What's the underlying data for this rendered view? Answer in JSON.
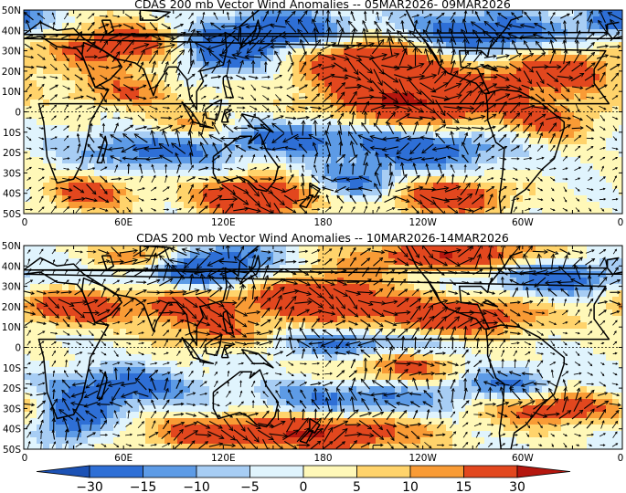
{
  "panels": [
    {
      "title": "CDAS 200 mb Vector Wind Anomalies -- 05MAR2026- 09MAR2026",
      "lat_labels": [
        "50N",
        "40N",
        "30N",
        "20N",
        "10N",
        "0",
        "10S",
        "20S",
        "30S",
        "40S",
        "50S"
      ],
      "lon_labels": [
        "0",
        "60E",
        "120E",
        "180",
        "120W",
        "60W",
        "0"
      ],
      "field": [
        {
          "lon": 60,
          "lat": 32,
          "a": 22,
          "rx": 32,
          "ry": 8
        },
        {
          "lon": 118,
          "lat": 30,
          "a": -25,
          "rx": 22,
          "ry": 8
        },
        {
          "lon": 160,
          "lat": 40,
          "a": -22,
          "rx": 30,
          "ry": 7
        },
        {
          "lon": 210,
          "lat": 25,
          "a": 28,
          "rx": 32,
          "ry": 9
        },
        {
          "lon": 240,
          "lat": 5,
          "a": 30,
          "rx": 40,
          "ry": 9
        },
        {
          "lon": 275,
          "lat": 38,
          "a": -24,
          "rx": 35,
          "ry": 8
        },
        {
          "lon": 320,
          "lat": 20,
          "a": 22,
          "rx": 28,
          "ry": 8
        },
        {
          "lon": 60,
          "lat": 10,
          "a": 14,
          "rx": 25,
          "ry": 6
        },
        {
          "lon": 100,
          "lat": -8,
          "a": 14,
          "rx": 25,
          "ry": 6
        },
        {
          "lon": 80,
          "lat": -18,
          "a": -20,
          "rx": 35,
          "ry": 7
        },
        {
          "lon": 160,
          "lat": -12,
          "a": -18,
          "rx": 30,
          "ry": 6
        },
        {
          "lon": 240,
          "lat": -18,
          "a": -22,
          "rx": 35,
          "ry": 7
        },
        {
          "lon": 140,
          "lat": -42,
          "a": 30,
          "rx": 25,
          "ry": 7
        },
        {
          "lon": 255,
          "lat": -42,
          "a": 26,
          "rx": 25,
          "ry": 6
        },
        {
          "lon": 40,
          "lat": -40,
          "a": 20,
          "rx": 18,
          "ry": 6
        },
        {
          "lon": 200,
          "lat": -35,
          "a": -16,
          "rx": 22,
          "ry": 6
        },
        {
          "lon": 320,
          "lat": -5,
          "a": 14,
          "rx": 20,
          "ry": 7
        },
        {
          "lon": 355,
          "lat": 45,
          "a": -20,
          "rx": 15,
          "ry": 6
        }
      ]
    },
    {
      "title": "CDAS 200 mb Vector Wind Anomalies -- 10MAR2026-14MAR2026",
      "lat_labels": [
        "50N",
        "40N",
        "30N",
        "20N",
        "10N",
        "0",
        "10S",
        "20S",
        "30S",
        "40S",
        "50S"
      ],
      "lon_labels": [
        "0",
        "60E",
        "120E",
        "180",
        "120W",
        "60W",
        "0"
      ],
      "field": [
        {
          "lon": 75,
          "lat": 45,
          "a": 24,
          "rx": 20,
          "ry": 5
        },
        {
          "lon": 110,
          "lat": 40,
          "a": -28,
          "rx": 30,
          "ry": 8
        },
        {
          "lon": 175,
          "lat": 25,
          "a": 26,
          "rx": 30,
          "ry": 9
        },
        {
          "lon": 260,
          "lat": 45,
          "a": 28,
          "rx": 40,
          "ry": 5
        },
        {
          "lon": 320,
          "lat": 35,
          "a": -20,
          "rx": 30,
          "ry": 7
        },
        {
          "lon": 30,
          "lat": 20,
          "a": 24,
          "rx": 25,
          "ry": 6
        },
        {
          "lon": 100,
          "lat": 20,
          "a": 20,
          "rx": 25,
          "ry": 7
        },
        {
          "lon": 260,
          "lat": 15,
          "a": 26,
          "rx": 35,
          "ry": 7
        },
        {
          "lon": 120,
          "lat": 5,
          "a": 14,
          "rx": 25,
          "ry": 5
        },
        {
          "lon": 200,
          "lat": 2,
          "a": -18,
          "rx": 40,
          "ry": 5
        },
        {
          "lon": 230,
          "lat": -10,
          "a": 18,
          "rx": 25,
          "ry": 6
        },
        {
          "lon": 60,
          "lat": -20,
          "a": -20,
          "rx": 30,
          "ry": 7
        },
        {
          "lon": 30,
          "lat": -35,
          "a": -22,
          "rx": 15,
          "ry": 8
        },
        {
          "lon": 200,
          "lat": -25,
          "a": -18,
          "rx": 40,
          "ry": 6
        },
        {
          "lon": 320,
          "lat": -30,
          "a": 22,
          "rx": 30,
          "ry": 6
        },
        {
          "lon": 180,
          "lat": -42,
          "a": 28,
          "rx": 40,
          "ry": 6
        },
        {
          "lon": 110,
          "lat": -42,
          "a": 16,
          "rx": 30,
          "ry": 6
        },
        {
          "lon": 290,
          "lat": -18,
          "a": -16,
          "rx": 25,
          "ry": 6
        }
      ]
    }
  ],
  "colorbar": {
    "ticks": [
      "−30",
      "−15",
      "−10",
      "−5",
      "0",
      "5",
      "10",
      "15",
      "30"
    ],
    "colors": [
      "#2e6fd6",
      "#5d9be6",
      "#a7cdf4",
      "#e0f4fd",
      "#fff8b8",
      "#ffd36b",
      "#f99b35",
      "#e2471e"
    ],
    "end_colors": [
      "#1c52b5",
      "#b5170f"
    ]
  },
  "levels": [
    {
      "t": -30,
      "c": "#1c52b5"
    },
    {
      "t": -15,
      "c": "#2e6fd6"
    },
    {
      "t": -10,
      "c": "#5d9be6"
    },
    {
      "t": -5,
      "c": "#a7cdf4"
    },
    {
      "t": 0,
      "c": "#e0f4fd"
    },
    {
      "t": 5,
      "c": "#fff8b8"
    },
    {
      "t": 10,
      "c": "#ffd36b"
    },
    {
      "t": 15,
      "c": "#f99b35"
    },
    {
      "t": 30,
      "c": "#e2471e"
    },
    {
      "t": 9999,
      "c": "#b5170f"
    }
  ]
}
